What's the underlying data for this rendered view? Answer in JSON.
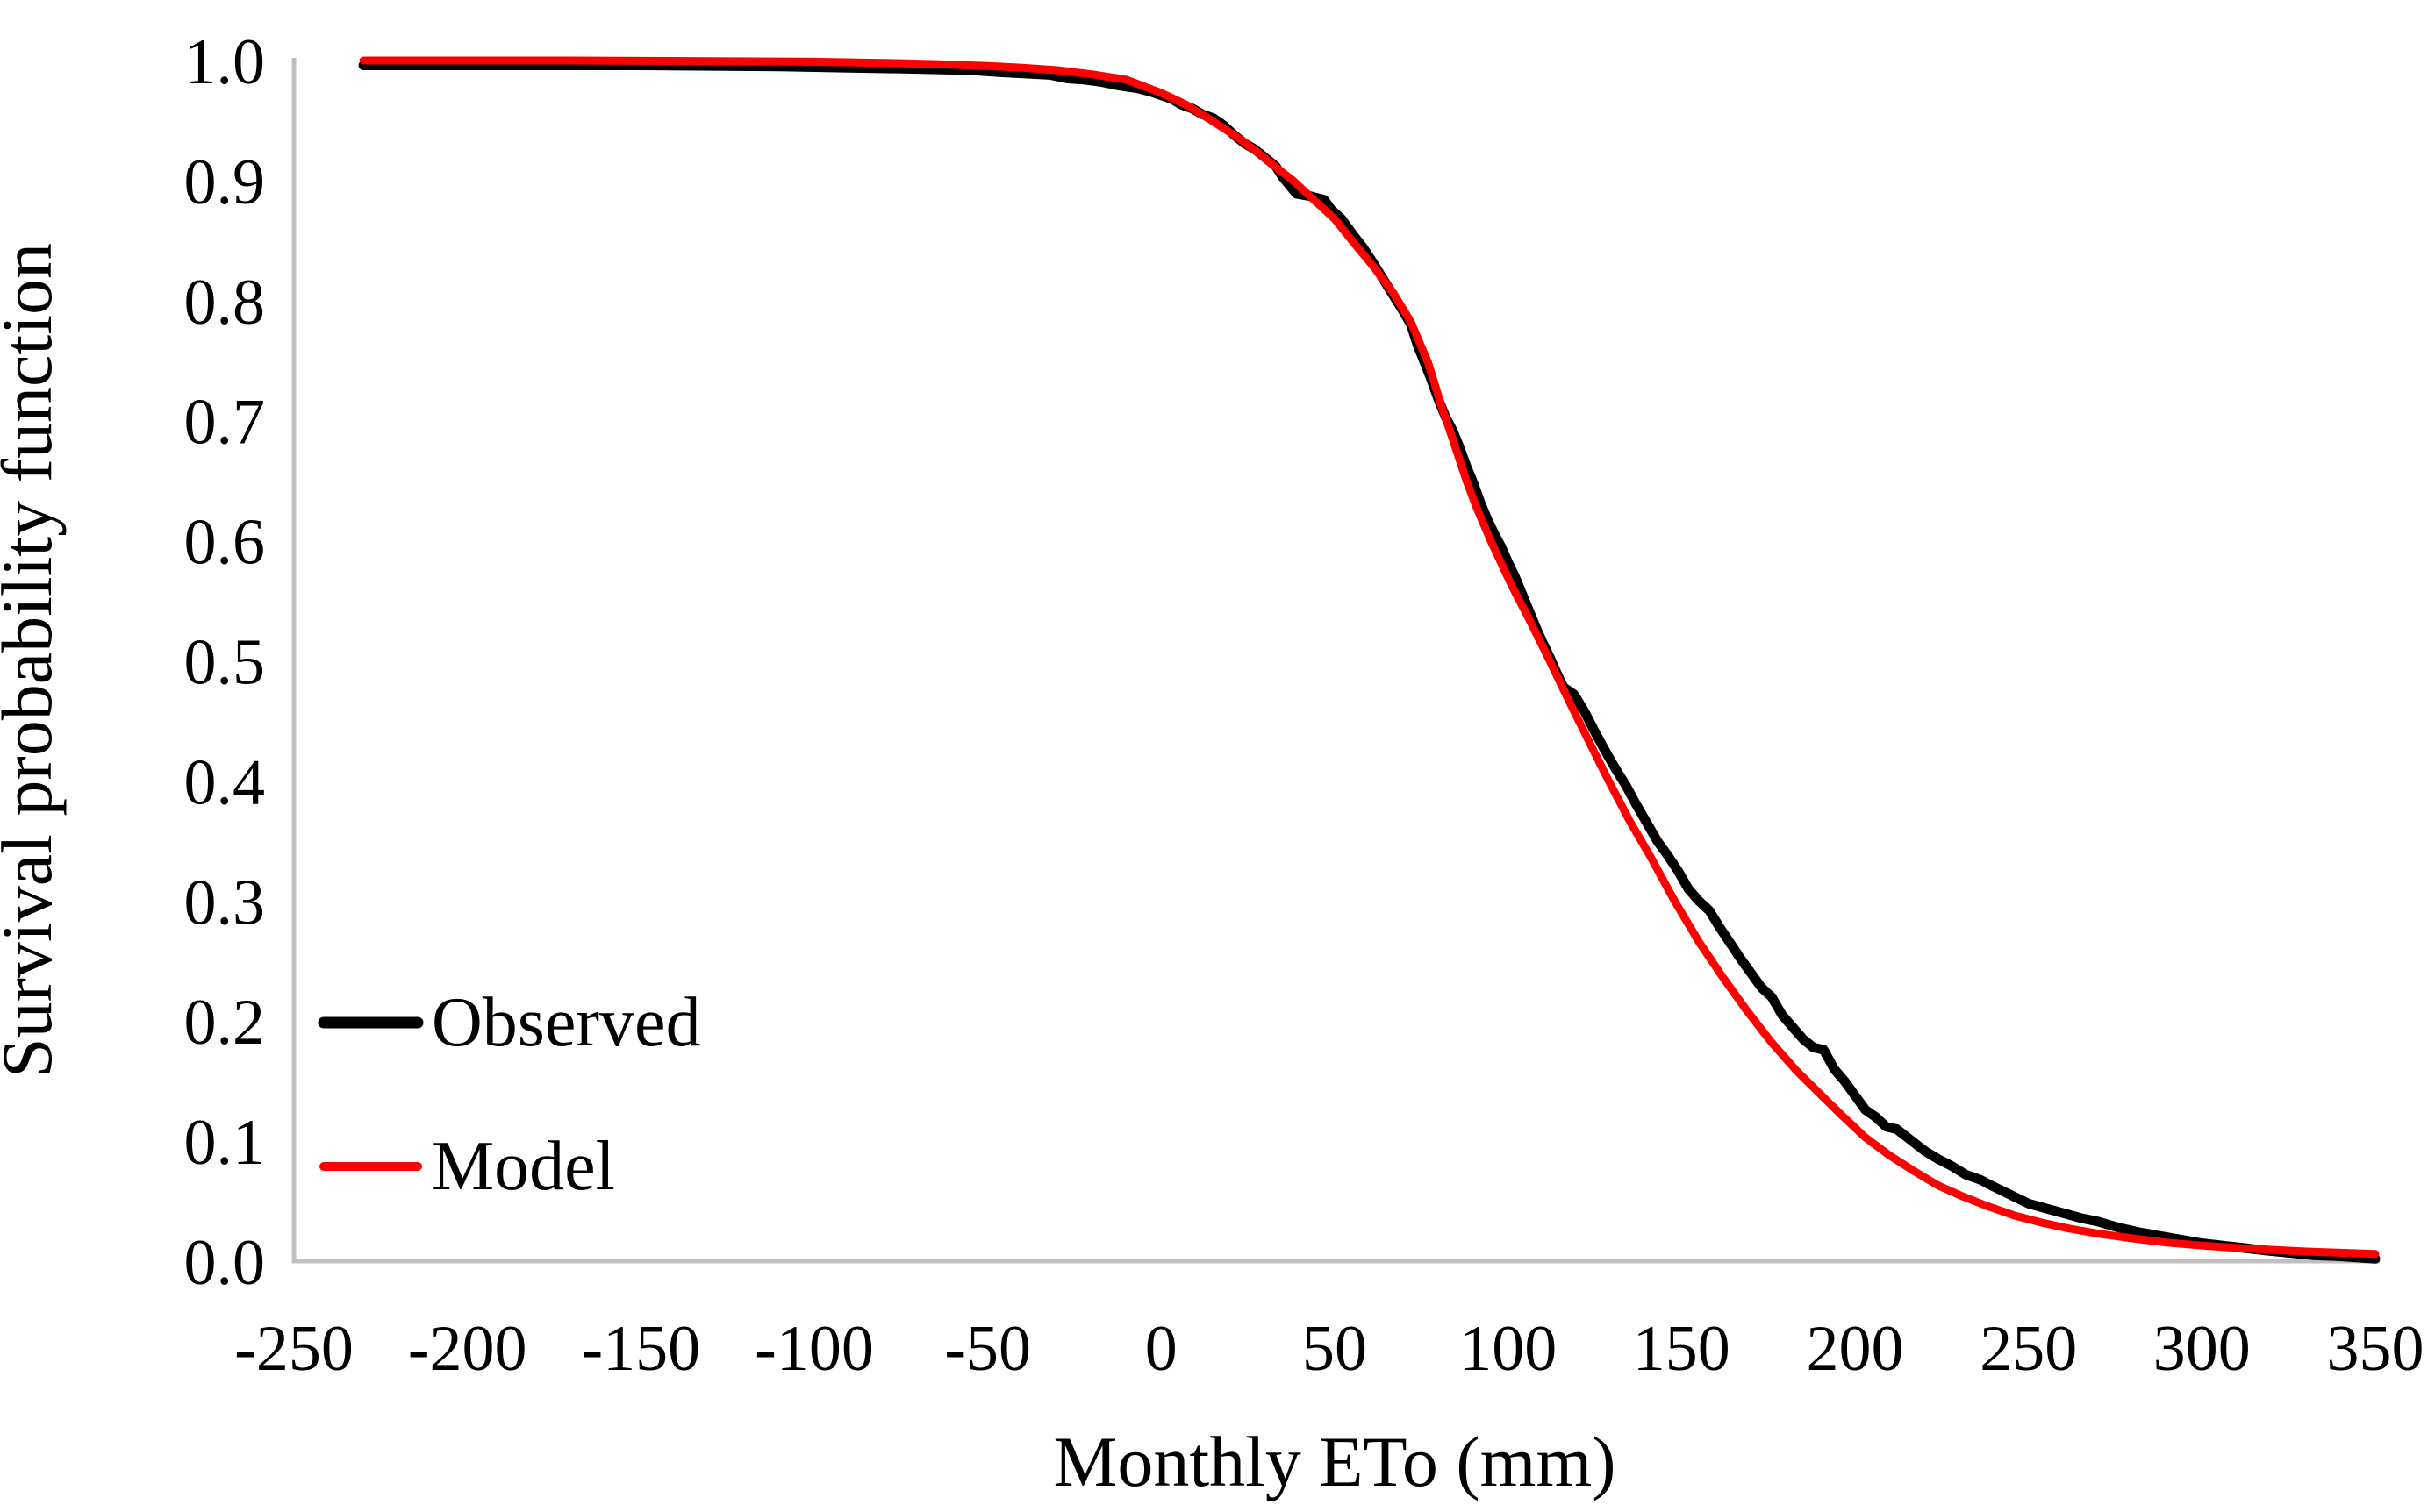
{
  "chart_data": {
    "type": "line",
    "title": "",
    "xlabel": "Monthly ETo (mm)",
    "ylabel": "Survival probability function",
    "xlim": [
      -250,
      350
    ],
    "ylim": [
      0.0,
      1.0
    ],
    "xticks": [
      -250,
      -200,
      -150,
      -100,
      -50,
      0,
      50,
      100,
      150,
      200,
      250,
      300,
      350
    ],
    "yticks": [
      "1.0",
      "0.9",
      "0.8",
      "0.7",
      "0.6",
      "0.5",
      "0.4",
      "0.3",
      "0.2",
      "0.1",
      "0.0"
    ],
    "grid": false,
    "background": "#FFFFFF",
    "axis_color": "#BFBFBF",
    "text_color": "#000000",
    "legend_position": "inside-bottom-left",
    "legend": [
      {
        "label": "Observed",
        "color": "#000000"
      },
      {
        "label": "Model",
        "color": "#FF0000"
      }
    ],
    "series": [
      {
        "name": "Observed",
        "color": "#000000",
        "stroke_px": 11,
        "points": [
          [
            -230,
            0.996
          ],
          [
            -150,
            0.996
          ],
          [
            -110,
            0.995
          ],
          [
            -90,
            0.994
          ],
          [
            -70,
            0.993
          ],
          [
            -55,
            0.992
          ],
          [
            -45,
            0.99
          ],
          [
            -38,
            0.989
          ],
          [
            -32,
            0.988
          ],
          [
            -27,
            0.985
          ],
          [
            -22,
            0.984
          ],
          [
            -17,
            0.982
          ],
          [
            -12,
            0.979
          ],
          [
            -7,
            0.977
          ],
          [
            -3,
            0.974
          ],
          [
            0,
            0.971
          ],
          [
            3,
            0.968
          ],
          [
            6,
            0.963
          ],
          [
            9,
            0.96
          ],
          [
            12,
            0.955
          ],
          [
            15,
            0.952
          ],
          [
            18,
            0.946
          ],
          [
            21,
            0.938
          ],
          [
            24,
            0.931
          ],
          [
            27,
            0.926
          ],
          [
            30,
            0.919
          ],
          [
            33,
            0.912
          ],
          [
            35,
            0.903
          ],
          [
            37,
            0.896
          ],
          [
            39,
            0.889
          ],
          [
            43,
            0.887
          ],
          [
            47,
            0.884
          ],
          [
            49,
            0.876
          ],
          [
            52,
            0.868
          ],
          [
            55,
            0.856
          ],
          [
            58,
            0.845
          ],
          [
            61,
            0.832
          ],
          [
            64,
            0.818
          ],
          [
            67,
            0.804
          ],
          [
            70,
            0.79
          ],
          [
            72,
            0.78
          ],
          [
            74,
            0.762
          ],
          [
            76,
            0.748
          ],
          [
            78,
            0.733
          ],
          [
            80,
            0.717
          ],
          [
            82,
            0.703
          ],
          [
            84,
            0.692
          ],
          [
            86,
            0.678
          ],
          [
            88,
            0.662
          ],
          [
            90,
            0.648
          ],
          [
            92,
            0.632
          ],
          [
            94,
            0.618
          ],
          [
            96,
            0.606
          ],
          [
            98,
            0.595
          ],
          [
            100,
            0.582
          ],
          [
            102,
            0.57
          ],
          [
            104,
            0.556
          ],
          [
            106,
            0.542
          ],
          [
            108,
            0.528
          ],
          [
            110,
            0.515
          ],
          [
            112,
            0.503
          ],
          [
            114,
            0.49
          ],
          [
            116,
            0.478
          ],
          [
            119,
            0.472
          ],
          [
            122,
            0.458
          ],
          [
            125,
            0.441
          ],
          [
            128,
            0.425
          ],
          [
            131,
            0.41
          ],
          [
            134,
            0.396
          ],
          [
            137,
            0.38
          ],
          [
            140,
            0.365
          ],
          [
            143,
            0.35
          ],
          [
            146,
            0.338
          ],
          [
            149,
            0.325
          ],
          [
            152,
            0.31
          ],
          [
            155,
            0.3
          ],
          [
            158,
            0.292
          ],
          [
            161,
            0.278
          ],
          [
            164,
            0.265
          ],
          [
            167,
            0.252
          ],
          [
            170,
            0.24
          ],
          [
            173,
            0.228
          ],
          [
            176,
            0.22
          ],
          [
            179,
            0.205
          ],
          [
            182,
            0.195
          ],
          [
            185,
            0.185
          ],
          [
            188,
            0.178
          ],
          [
            191,
            0.176
          ],
          [
            194,
            0.16
          ],
          [
            197,
            0.15
          ],
          [
            200,
            0.138
          ],
          [
            203,
            0.126
          ],
          [
            206,
            0.12
          ],
          [
            209,
            0.112
          ],
          [
            212,
            0.11
          ],
          [
            216,
            0.101
          ],
          [
            220,
            0.092
          ],
          [
            224,
            0.085
          ],
          [
            228,
            0.079
          ],
          [
            232,
            0.072
          ],
          [
            236,
            0.068
          ],
          [
            240,
            0.062
          ],
          [
            245,
            0.055
          ],
          [
            250,
            0.048
          ],
          [
            255,
            0.044
          ],
          [
            260,
            0.04
          ],
          [
            265,
            0.036
          ],
          [
            270,
            0.033
          ],
          [
            276,
            0.028
          ],
          [
            282,
            0.024
          ],
          [
            288,
            0.021
          ],
          [
            294,
            0.018
          ],
          [
            300,
            0.015
          ],
          [
            306,
            0.013
          ],
          [
            312,
            0.011
          ],
          [
            318,
            0.009
          ],
          [
            325,
            0.007
          ],
          [
            332,
            0.005
          ],
          [
            340,
            0.004
          ],
          [
            345,
            0.003
          ],
          [
            350,
            0.002
          ]
        ]
      },
      {
        "name": "Model",
        "color": "#FF0000",
        "stroke_px": 9,
        "points": [
          [
            -230,
            1.0
          ],
          [
            -170,
            1.0
          ],
          [
            -130,
            0.9995
          ],
          [
            -100,
            0.999
          ],
          [
            -80,
            0.998
          ],
          [
            -65,
            0.997
          ],
          [
            -50,
            0.9955
          ],
          [
            -40,
            0.994
          ],
          [
            -30,
            0.992
          ],
          [
            -20,
            0.9885
          ],
          [
            -10,
            0.984
          ],
          [
            -5,
            0.9785
          ],
          [
            0,
            0.973
          ],
          [
            7,
            0.9635
          ],
          [
            14,
            0.951
          ],
          [
            21,
            0.938
          ],
          [
            28,
            0.923
          ],
          [
            34,
            0.909
          ],
          [
            38,
            0.9
          ],
          [
            44,
            0.884
          ],
          [
            50,
            0.868
          ],
          [
            55,
            0.85
          ],
          [
            61,
            0.829
          ],
          [
            67,
            0.806
          ],
          [
            72,
            0.782
          ],
          [
            77,
            0.748
          ],
          [
            81,
            0.71
          ],
          [
            84,
            0.685
          ],
          [
            88,
            0.65
          ],
          [
            91,
            0.627
          ],
          [
            95,
            0.6
          ],
          [
            101,
            0.563
          ],
          [
            106,
            0.535
          ],
          [
            112,
            0.5
          ],
          [
            118,
            0.464
          ],
          [
            124,
            0.429
          ],
          [
            129,
            0.4
          ],
          [
            135,
            0.367
          ],
          [
            141,
            0.337
          ],
          [
            148,
            0.3
          ],
          [
            155,
            0.266
          ],
          [
            162,
            0.236
          ],
          [
            169,
            0.208
          ],
          [
            176,
            0.182
          ],
          [
            183,
            0.159
          ],
          [
            190,
            0.139
          ],
          [
            196,
            0.122
          ],
          [
            203,
            0.103
          ],
          [
            210,
            0.088
          ],
          [
            217,
            0.075
          ],
          [
            224,
            0.063
          ],
          [
            231,
            0.054
          ],
          [
            238,
            0.046
          ],
          [
            246,
            0.038
          ],
          [
            254,
            0.032
          ],
          [
            262,
            0.027
          ],
          [
            270,
            0.023
          ],
          [
            280,
            0.019
          ],
          [
            290,
            0.0155
          ],
          [
            300,
            0.013
          ],
          [
            310,
            0.011
          ],
          [
            320,
            0.0095
          ],
          [
            330,
            0.008
          ],
          [
            340,
            0.007
          ],
          [
            350,
            0.006
          ]
        ]
      }
    ]
  }
}
